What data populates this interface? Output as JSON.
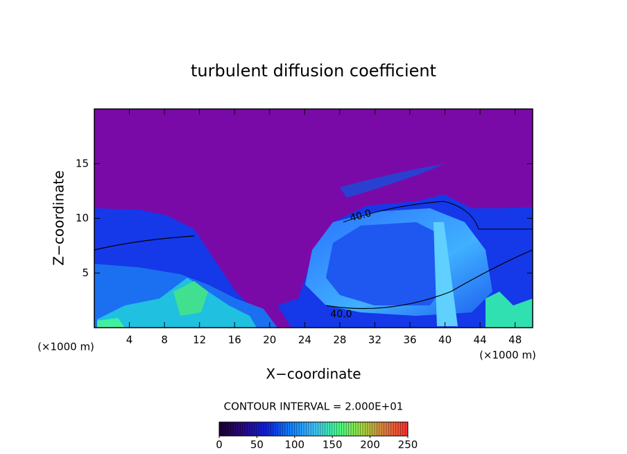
{
  "chart_data": {
    "type": "contourf",
    "title": "turbulent diffusion coefficient",
    "x_label": "X−coordinate",
    "y_label": "Z−coordinate",
    "x_unit_label": "(×1000 m)",
    "y_unit_label": "(×1000 m)",
    "xlim": [
      0,
      50
    ],
    "xticks": [
      4,
      8,
      12,
      16,
      20,
      24,
      28,
      32,
      36,
      40,
      44,
      48
    ],
    "ylim": [
      0,
      20
    ],
    "yticks": [
      5,
      10,
      15
    ],
    "contour_labels": [
      "40.0",
      "40.0"
    ],
    "contour_interval_label": "CONTOUR INTERVAL = 2.000E+01",
    "colorbar": {
      "lim": [
        0,
        250
      ],
      "ticks": [
        0,
        50,
        100,
        150,
        200,
        250
      ],
      "colormap": [
        "#1a0030",
        "#2a0a80",
        "#1020e0",
        "#1080ff",
        "#40c0ff",
        "#40ff90",
        "#a0e040",
        "#e08040",
        "#ff3030"
      ]
    }
  }
}
